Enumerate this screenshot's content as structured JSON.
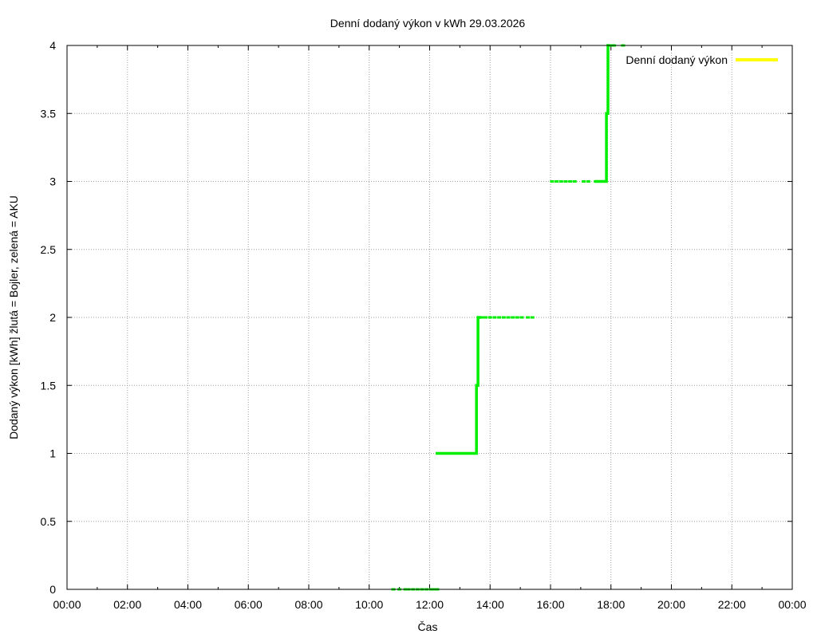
{
  "chart_data": {
    "type": "line",
    "title": "Denní dodaný výkon v kWh 29.03.2026",
    "xlabel": "Čas",
    "ylabel": "Dodaný výkon [kWh]  žlutá = Bojler, zelená = AKU",
    "xlim": [
      0,
      24
    ],
    "ylim": [
      0,
      4
    ],
    "x_ticks": [
      "00:00",
      "02:00",
      "04:00",
      "06:00",
      "08:00",
      "10:00",
      "12:00",
      "14:00",
      "16:00",
      "18:00",
      "20:00",
      "22:00",
      "00:00"
    ],
    "y_ticks": [
      "0",
      "0.5",
      "1",
      "1.5",
      "2",
      "2.5",
      "3",
      "3.5",
      "4"
    ],
    "grid": true,
    "legend": {
      "position": "top-right",
      "entries": [
        {
          "label": "Denní dodaný výkon",
          "color": "#ffff00"
        }
      ]
    },
    "series": [
      {
        "name": "Denní dodaný výkon",
        "color": "#ffff00",
        "style": "solid",
        "points": []
      },
      {
        "color": "#00ee00",
        "style": "dotted",
        "points": [
          {
            "x": 10.8,
            "y": 0
          },
          {
            "x": 11.0,
            "y": 0
          },
          {
            "x": 11.2,
            "y": 0
          },
          {
            "x": 11.3,
            "y": 0
          },
          {
            "x": 11.45,
            "y": 0
          },
          {
            "x": 11.6,
            "y": 0
          },
          {
            "x": 11.75,
            "y": 0
          },
          {
            "x": 11.9,
            "y": 0
          },
          {
            "x": 12.05,
            "y": 0
          },
          {
            "x": 12.15,
            "y": 0
          },
          {
            "x": 12.25,
            "y": 0
          },
          {
            "x": 13.65,
            "y": 2
          },
          {
            "x": 13.75,
            "y": 2
          },
          {
            "x": 13.85,
            "y": 2
          },
          {
            "x": 14.0,
            "y": 2
          },
          {
            "x": 14.15,
            "y": 2
          },
          {
            "x": 14.3,
            "y": 2
          },
          {
            "x": 14.45,
            "y": 2
          },
          {
            "x": 14.6,
            "y": 2
          },
          {
            "x": 14.75,
            "y": 2
          },
          {
            "x": 14.9,
            "y": 2
          },
          {
            "x": 15.05,
            "y": 2
          },
          {
            "x": 15.25,
            "y": 2
          },
          {
            "x": 15.4,
            "y": 2
          },
          {
            "x": 16.05,
            "y": 3
          },
          {
            "x": 16.2,
            "y": 3
          },
          {
            "x": 16.35,
            "y": 3
          },
          {
            "x": 16.5,
            "y": 3
          },
          {
            "x": 16.65,
            "y": 3
          },
          {
            "x": 16.8,
            "y": 3
          },
          {
            "x": 17.1,
            "y": 3
          },
          {
            "x": 17.25,
            "y": 3
          },
          {
            "x": 17.5,
            "y": 3
          },
          {
            "x": 18.0,
            "y": 4
          },
          {
            "x": 18.1,
            "y": 4
          },
          {
            "x": 18.4,
            "y": 4
          }
        ]
      },
      {
        "color": "#00ee00",
        "style": "solid",
        "points": [
          {
            "x": 12.2,
            "y": 1
          },
          {
            "x": 13.55,
            "y": 1
          },
          {
            "x": 13.55,
            "y": 1.5
          },
          {
            "x": 13.6,
            "y": 1.5
          },
          {
            "x": 13.6,
            "y": 2
          },
          {
            "x": 13.7,
            "y": 2
          }
        ]
      },
      {
        "color": "#00ee00",
        "style": "solid",
        "points": [
          {
            "x": 17.45,
            "y": 3
          },
          {
            "x": 17.85,
            "y": 3
          },
          {
            "x": 17.85,
            "y": 3.5
          },
          {
            "x": 17.9,
            "y": 3.5
          },
          {
            "x": 17.9,
            "y": 4
          },
          {
            "x": 17.95,
            "y": 4
          }
        ]
      }
    ]
  }
}
